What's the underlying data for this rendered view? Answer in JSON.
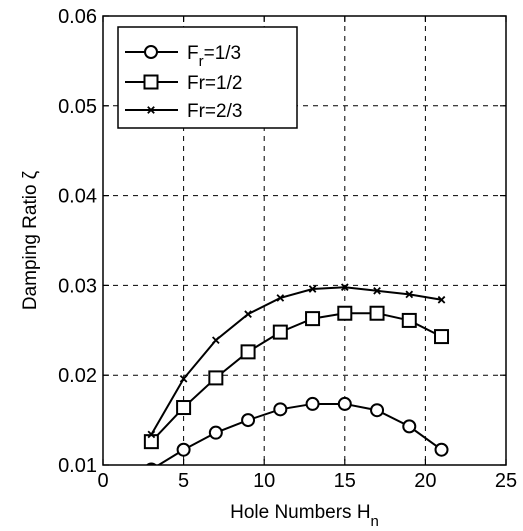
{
  "chart_data": {
    "type": "line",
    "xlabel": "Hole Numbers H",
    "xlabel_sub": "n",
    "ylabel": "Damping Ratio ζ",
    "xlim": [
      0,
      25
    ],
    "ylim": [
      0.01,
      0.06
    ],
    "xticks": [
      0,
      5,
      10,
      15,
      20,
      25
    ],
    "yticks": [
      0.01,
      0.02,
      0.03,
      0.04,
      0.05,
      0.06
    ],
    "xtick_labels": [
      "0",
      "5",
      "10",
      "15",
      "20",
      "25"
    ],
    "ytick_labels": [
      "0.01",
      "0.02",
      "0.03",
      "0.04",
      "0.05",
      "0.06"
    ],
    "grid": true,
    "legend_position": "top-left",
    "series": [
      {
        "name": "F_r=1/3",
        "legend_main": "F",
        "legend_sub": "r",
        "legend_rest": "=1/3",
        "marker": "circle",
        "x": [
          3,
          5,
          7,
          9,
          11,
          13,
          15,
          17,
          19,
          21
        ],
        "y": [
          0.0095,
          0.0117,
          0.0136,
          0.015,
          0.0162,
          0.0168,
          0.0168,
          0.0161,
          0.0143,
          0.0117
        ]
      },
      {
        "name": "Fr=1/2",
        "legend_main": "Fr=1/2",
        "legend_sub": "",
        "legend_rest": "",
        "marker": "square",
        "x": [
          3,
          5,
          7,
          9,
          11,
          13,
          15,
          17,
          19,
          21
        ],
        "y": [
          0.0126,
          0.0164,
          0.0197,
          0.0226,
          0.0248,
          0.0263,
          0.0269,
          0.0269,
          0.0261,
          0.0243
        ]
      },
      {
        "name": "Fr=2/3",
        "legend_main": "Fr=2/3",
        "legend_sub": "",
        "legend_rest": "",
        "marker": "x",
        "x": [
          3,
          5,
          7,
          9,
          11,
          13,
          15,
          17,
          19,
          21
        ],
        "y": [
          0.0134,
          0.0196,
          0.0239,
          0.0268,
          0.0286,
          0.0296,
          0.0298,
          0.0294,
          0.029,
          0.0284
        ]
      }
    ]
  }
}
